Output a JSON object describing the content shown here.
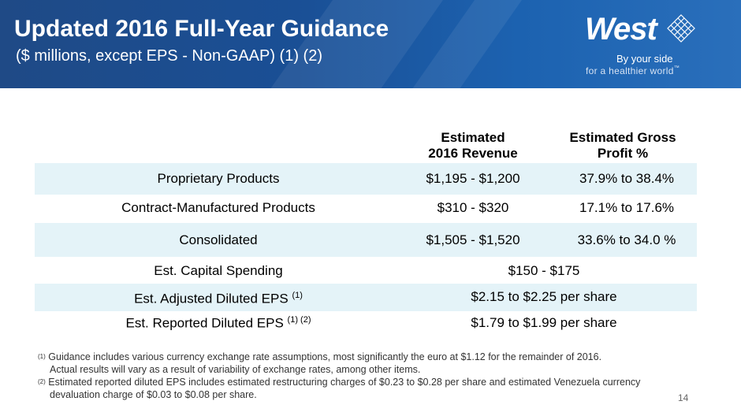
{
  "header": {
    "title": "Updated 2016 Full-Year Guidance",
    "subtitle": "($ millions, except EPS - Non-GAAP) (1) (2)"
  },
  "logo": {
    "wordmark": "West",
    "tagline_1": "By your side",
    "tagline_2": "for a healthier world",
    "tm": "™"
  },
  "table": {
    "col_revenue": [
      "Estimated",
      "2016 Revenue"
    ],
    "col_margin": [
      "Estimated Gross",
      "Profit %"
    ],
    "rows": [
      {
        "label": "Proprietary Products",
        "revenue": "$1,195 - $1,200",
        "margin": "37.9% to 38.4%"
      },
      {
        "label": "Contract-Manufactured Products",
        "revenue": "$310 - $320",
        "margin": "17.1% to 17.6%"
      },
      {
        "label": "Consolidated",
        "revenue": "$1,505 - $1,520",
        "margin": "33.6% to 34.0 %"
      },
      {
        "label": "Est. Capital Spending",
        "value": "$150 - $175"
      },
      {
        "label": "Est. Adjusted Diluted EPS",
        "sup": "(1)",
        "value": "$2.15 to $2.25 per share"
      },
      {
        "label": "Est. Reported Diluted EPS",
        "sup": "(1) (2)",
        "value": "$1.79 to $1.99 per share"
      }
    ]
  },
  "footnotes": {
    "fn1_marker": "(1)",
    "fn1_line1": "Guidance includes various currency exchange rate assumptions, most significantly the euro at $1.12 for the remainder of 2016.",
    "fn1_line2": "Actual results will vary as a result of variability of exchange rates, among other items.",
    "fn2_marker": "(2)",
    "fn2_line1": "Estimated reported diluted EPS includes estimated restructuring charges of $0.23 to $0.28 per share and estimated Venezuela currency",
    "fn2_line2": "devaluation charge of $0.03 to $0.08 per share."
  },
  "page_number": "14",
  "colors": {
    "header": "#1f4a86",
    "row_shade": "#e4f3f8"
  }
}
